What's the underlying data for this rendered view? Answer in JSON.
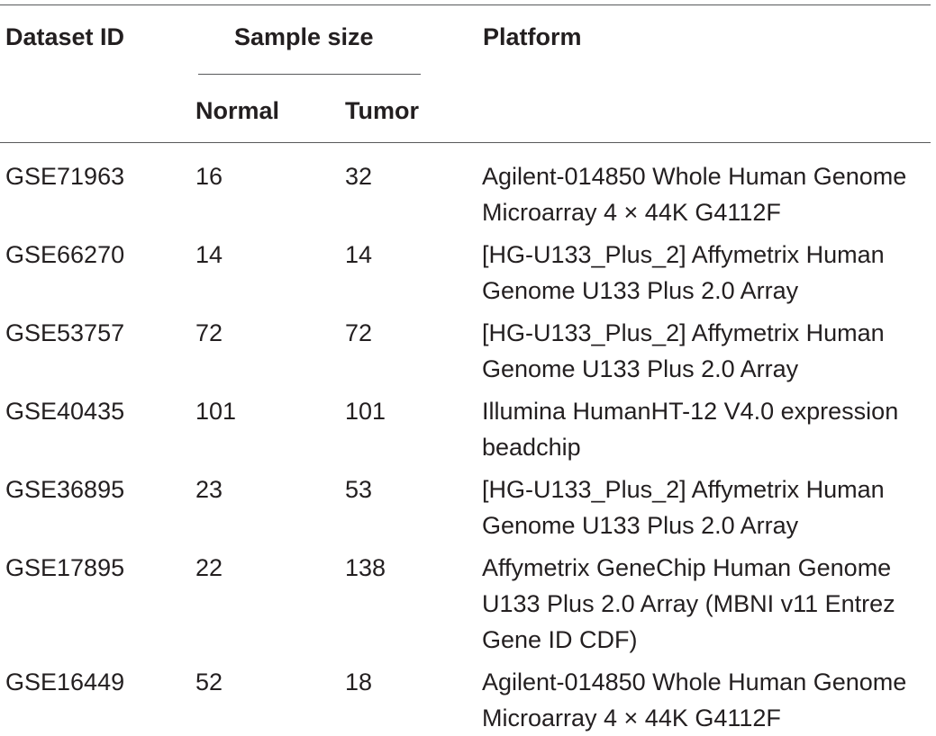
{
  "header": {
    "dataset_id": "Dataset ID",
    "sample_size": "Sample size",
    "platform": "Platform",
    "normal": "Normal",
    "tumor": "Tumor"
  },
  "rows": [
    {
      "id": "GSE71963",
      "normal": "16",
      "tumor": "32",
      "platform": [
        "Agilent-014850 Whole Human Genome",
        "Microarray 4 × 44K G4112F"
      ]
    },
    {
      "id": "GSE66270",
      "normal": "14",
      "tumor": "14",
      "platform": [
        "[HG-U133_Plus_2] Affymetrix Human",
        "Genome U133 Plus 2.0 Array"
      ]
    },
    {
      "id": "GSE53757",
      "normal": "72",
      "tumor": "72",
      "platform": [
        "[HG-U133_Plus_2] Affymetrix Human",
        "Genome U133 Plus 2.0 Array"
      ]
    },
    {
      "id": "GSE40435",
      "normal": "101",
      "tumor": "101",
      "platform": [
        "Illumina HumanHT-12 V4.0 expression",
        "beadchip"
      ]
    },
    {
      "id": "GSE36895",
      "normal": "23",
      "tumor": "53",
      "platform": [
        "[HG-U133_Plus_2] Affymetrix Human",
        "Genome U133 Plus 2.0 Array"
      ]
    },
    {
      "id": "GSE17895",
      "normal": "22",
      "tumor": "138",
      "platform": [
        "Affymetrix GeneChip Human Genome",
        "U133 Plus 2.0 Array (MBNI v11 Entrez",
        "Gene ID CDF)"
      ]
    },
    {
      "id": "GSE16449",
      "normal": "52",
      "tumor": "18",
      "platform": [
        "Agilent-014850 Whole Human Genome",
        "Microarray 4 × 44K G4112F"
      ]
    }
  ]
}
